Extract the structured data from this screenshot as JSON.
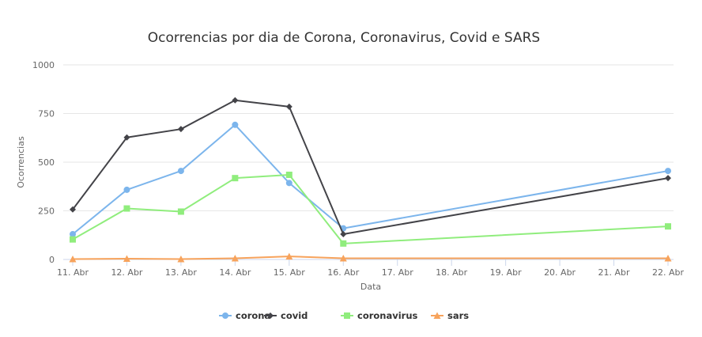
{
  "chart_data": {
    "type": "line",
    "title": "Ocorrencias por dia de Corona, Coronavirus, Covid e SARS",
    "xlabel": "Data",
    "ylabel": "Ocorrencias",
    "x": [
      "11. Abr",
      "12. Abr",
      "13. Abr",
      "14. Abr",
      "15. Abr",
      "16. Abr",
      "17. Abr",
      "18. Abr",
      "19. Abr",
      "20. Abr",
      "21. Abr",
      "22. Abr"
    ],
    "ylim": [
      0,
      1000
    ],
    "yticks": [
      "0",
      "250",
      "500",
      "750",
      "1000"
    ],
    "grid": true,
    "legend_position": "bottom-center",
    "series": [
      {
        "name": "corona",
        "color": "#7cb5ec",
        "marker": "circle",
        "values": [
          130,
          358,
          455,
          692,
          393,
          160,
          null,
          null,
          null,
          null,
          null,
          455
        ]
      },
      {
        "name": "covid",
        "color": "#434348",
        "marker": "diamond",
        "values": [
          257,
          627,
          670,
          818,
          785,
          130,
          null,
          null,
          null,
          null,
          null,
          418
        ]
      },
      {
        "name": "coronavirus",
        "color": "#90ed7d",
        "marker": "square",
        "values": [
          103,
          262,
          246,
          418,
          435,
          82,
          null,
          null,
          null,
          null,
          null,
          170
        ]
      },
      {
        "name": "sars",
        "color": "#f7a35c",
        "marker": "triangle",
        "values": [
          2,
          4,
          2,
          6,
          16,
          6,
          null,
          null,
          null,
          null,
          null,
          6
        ]
      }
    ]
  }
}
